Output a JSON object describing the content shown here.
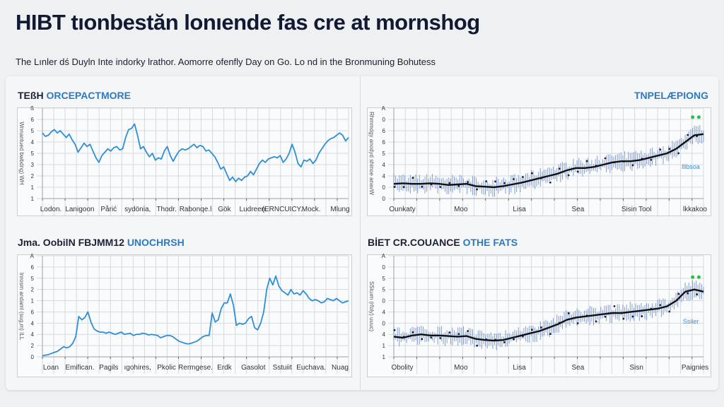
{
  "page": {
    "title": "HIBT tıonbestăn lonıende fas cre at mornshog",
    "subtitle": "The Lınler dś Duyln Inte indorky lrathor. Aomorre ofenfly Day on Go. Lo nd in the Bronmuning Bohutess"
  },
  "colors": {
    "line_blue": "#2e8fd6",
    "trend_black": "#111111",
    "scatter_blue": "#5b7fc4",
    "highlight_green": "#2ebd4f",
    "title_dark": "#1b2236",
    "title_accent": "#2a7bc4",
    "grid": "#d5d9de"
  },
  "chart_data": [
    {
      "id": "top-left",
      "type": "line",
      "title_part1": "TEßH",
      "title_part2": "ORCEPACTMORE",
      "ylabel": "Wnnantued bwbdng) WH",
      "ytick_labels": [
        "ß",
        "6",
        "5",
        "4",
        "5",
        "3",
        "2",
        "1",
        "1"
      ],
      "xtick_labels": [
        "Lodon.",
        "Lanigoon",
        "Pårić",
        "sydönia,",
        "Thodr.",
        "Rabonqe.l",
        "Gök",
        "Ludreen.",
        "(ERNCUICY.",
        "Mock.",
        "Mlung"
      ],
      "ylim": [
        0,
        8
      ],
      "grid": true,
      "series": [
        {
          "name": "main",
          "color": "#2e8fd6",
          "values": [
            5.8,
            5.5,
            5.6,
            5.9,
            6.1,
            5.8,
            6.0,
            5.7,
            5.4,
            5.7,
            5.2,
            4.8,
            4.1,
            4.5,
            4.9,
            4.6,
            4.8,
            4.2,
            3.6,
            3.2,
            3.8,
            4.1,
            4.4,
            4.2,
            4.5,
            4.6,
            4.3,
            4.4,
            5.4,
            6.1,
            6.2,
            6.6,
            5.6,
            4.4,
            4.6,
            4.1,
            3.7,
            4.0,
            3.4,
            3.6,
            3.5,
            4.2,
            4.6,
            3.8,
            3.3,
            3.8,
            4.2,
            4.4,
            4.3,
            4.4,
            4.6,
            4.8,
            4.5,
            4.7,
            4.6,
            4.2,
            4.3,
            4.0,
            3.7,
            3.2,
            2.6,
            2.8,
            2.2,
            1.6,
            1.9,
            1.5,
            1.8,
            1.6,
            1.9,
            2.0,
            2.4,
            2.1,
            2.6,
            3.1,
            3.4,
            3.2,
            3.5,
            3.6,
            3.7,
            3.6,
            3.8,
            3.2,
            3.5,
            4.0,
            4.8,
            4.1,
            3.1,
            2.8,
            3.4,
            3.3,
            3.5,
            3.1,
            3.4,
            4.0,
            4.4,
            4.8,
            5.1,
            5.3,
            5.4,
            5.6,
            5.8,
            5.6,
            5.1,
            5.4
          ]
        }
      ]
    },
    {
      "id": "top-right",
      "type": "scatter",
      "title_part1": "",
      "title_part2": "TNPELÆPIONG",
      "ylabel": "Rhmmdgy anodyd shinoe anavW",
      "ytick_labels": [
        "A",
        "0",
        "6",
        "6",
        "5",
        "4",
        "4",
        "0",
        "0"
      ],
      "xtick_labels": [
        "Ounkaty",
        "Moo",
        "Lisa",
        "Sea",
        "Sisin  Tool",
        "lkkakoo"
      ],
      "annotation": "lllbsoa",
      "ylim": [
        0,
        8
      ],
      "grid": true,
      "trend": {
        "name": "trend",
        "color": "#111111",
        "values": [
          1.3,
          1.35,
          1.3,
          1.3,
          1.35,
          1.3,
          1.2,
          1.25,
          1.3,
          1.1,
          1.05,
          1.0,
          1.1,
          1.25,
          1.4,
          1.6,
          1.8,
          2.0,
          2.2,
          2.5,
          2.7,
          2.7,
          2.8,
          3.0,
          3.2,
          3.3,
          3.3,
          3.4,
          3.6,
          3.8,
          4.0,
          4.4,
          5.0,
          5.6,
          5.7
        ]
      },
      "scatter_range": {
        "spread": 0.7
      },
      "highlight_points": [
        [
          0.965,
          7.2
        ],
        [
          0.985,
          7.2
        ]
      ]
    },
    {
      "id": "bottom-left",
      "type": "line",
      "title_part1": "Jma. OobilN FBJMM12",
      "title_part2": "UNOCHRSH",
      "ylabel": "Inrosm andaml (sug,m) ILL",
      "ytick_labels": [
        "A",
        "6",
        "5",
        "2",
        "1",
        "6",
        "4",
        "4",
        "2",
        "0"
      ],
      "xtick_labels": [
        "Loan",
        "Emifican.",
        "Pagils",
        "ıgohires,",
        "Pkolic",
        "Rermgese.",
        "Erdk",
        "Gasolot",
        "Sstuiit",
        "Euchava.",
        "Nuag"
      ],
      "ylim": [
        0,
        9
      ],
      "grid": true,
      "series": [
        {
          "name": "main",
          "color": "#2e8fd6",
          "values": [
            0.1,
            0.15,
            0.2,
            0.3,
            0.4,
            0.5,
            0.7,
            0.9,
            0.8,
            0.9,
            1.2,
            1.8,
            3.6,
            3.3,
            3.5,
            4.0,
            3.1,
            2.5,
            2.3,
            2.2,
            2.2,
            2.1,
            2.2,
            2.1,
            2.0,
            2.1,
            2.2,
            2.0,
            2.05,
            2.1,
            1.9,
            2.0,
            2.0,
            2.1,
            2.05,
            1.95,
            2.0,
            1.95,
            1.9,
            1.7,
            1.8,
            1.9,
            1.9,
            1.8,
            1.6,
            1.4,
            1.3,
            1.2,
            1.15,
            1.2,
            1.3,
            1.4,
            1.6,
            1.8,
            1.9,
            1.9,
            3.9,
            3.1,
            3.3,
            4.3,
            4.8,
            4.8,
            5.6,
            4.6,
            2.8,
            3.0,
            2.9,
            3.0,
            3.4,
            3.6,
            2.6,
            2.4,
            3.0,
            4.0,
            6.0,
            7.0,
            6.4,
            7.2,
            6.3,
            5.9,
            5.7,
            5.5,
            6.0,
            5.6,
            5.7,
            5.5,
            5.9,
            5.6,
            5.2,
            5.0,
            5.1,
            5.0,
            4.8,
            4.9,
            5.2,
            5.1,
            5.0,
            5.2,
            5.0,
            4.8,
            4.9,
            5.0
          ]
        }
      ]
    },
    {
      "id": "bottom-right",
      "type": "scatter",
      "title_part1": "BİET CR.COUANCE",
      "title_part2": "OTHE FATS",
      "ylabel": "SStuım (rfoly) uuuc)",
      "ytick_labels": [
        "A",
        "0",
        "5",
        "5",
        "0",
        "4",
        "0",
        "4",
        "1",
        "1"
      ],
      "xtick_labels": [
        "Obolity",
        "Moo",
        "Lisa",
        "Sea",
        "Sisn",
        "Paignies"
      ],
      "annotation": "Ssiler",
      "ylim": [
        0,
        9
      ],
      "grid": true,
      "trend": {
        "name": "trend",
        "color": "#111111",
        "values": [
          1.8,
          1.7,
          1.9,
          2.0,
          1.9,
          1.9,
          1.85,
          1.8,
          1.85,
          1.6,
          1.5,
          1.45,
          1.5,
          1.7,
          1.9,
          2.1,
          2.3,
          2.6,
          2.9,
          3.3,
          3.5,
          3.6,
          3.7,
          3.8,
          3.9,
          3.9,
          4.0,
          4.1,
          4.2,
          4.3,
          4.5,
          5.0,
          5.8,
          6.0,
          5.8
        ]
      },
      "scatter_range": {
        "spread": 0.7
      },
      "highlight_points": [
        [
          0.965,
          7.1
        ],
        [
          0.985,
          7.1
        ]
      ]
    }
  ]
}
